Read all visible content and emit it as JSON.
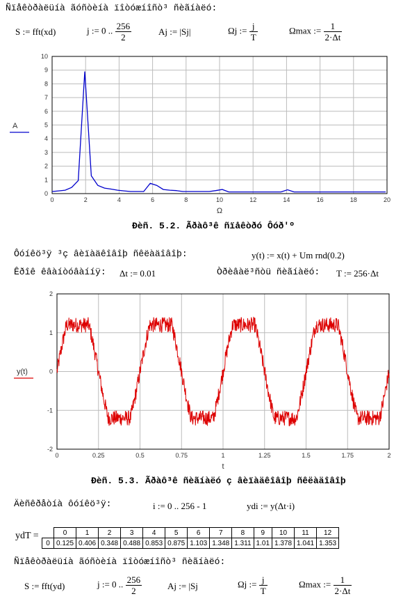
{
  "doc": {
    "heading1": "Ñïåêòðàëüíà ãóñòèíà ïîòóæíîñò³ ñèãíàëó:",
    "formula1": {
      "s_def": "S := fft(xd)",
      "j_range_left": "j := 0 ..",
      "j_num": "256",
      "j_den": "2",
      "a_def": "Aj := |Sj|",
      "omega_def_left": "Ωj :=",
      "omega_num": "j",
      "omega_den": "T",
      "omega_max_left": "Ωmax :=",
      "omega_max_num": "1",
      "omega_max_den": "2·Δt"
    },
    "fig2_caption": "Ðèñ. 5.2. Ãðàô³ê ñïåêòðó Ôóð'º",
    "noise_intro": "Ôóíêö³ÿ ³ç âèïàäêîâîþ ñêëàäîâîþ:",
    "y_def": "y(t) := x(t) + Um rnd(0.2)",
    "step_label": "Êðîê êâàíòóâàííÿ:",
    "step_value": "Δt := 0.01",
    "duration_label": "Òðèâàë³ñòü ñèãíàëó:",
    "duration_value": "T := 256·Δt",
    "fig3_caption": "Ðèñ. 5.3. Ãðàô³ê ñèãíàëó ç âèïàäêîâîþ ñêëàäîâîþ",
    "discrete_label": "Äèñêðåòíà ôóíêö³ÿ:",
    "i_range": "i := 0 .. 256 - 1",
    "yd_def": "ydi := y(Δt·i)",
    "yd_label": "ydT =",
    "heading2": "Ñïåêòðàëüíà ãóñòèíà ïîòóæíîñò³ ñèãíàëó:",
    "formula2": {
      "s_def": "S := fft(yd)",
      "j_range_left": "j := 0 ..",
      "j_num": "256",
      "j_den": "2",
      "a_def": "Aj := |Sj",
      "omega_def_left": "Ωj :=",
      "omega_num": "j",
      "omega_den": "T",
      "omega_max_left": "Ωmax :=",
      "omega_max_num": "1",
      "omega_max_den": "2·Δt"
    }
  },
  "yd_table": {
    "col_indices": [
      "0",
      "1",
      "2",
      "3",
      "4",
      "5",
      "6",
      "7",
      "8",
      "9",
      "10",
      "11",
      "12"
    ],
    "row_index": "0",
    "values": [
      "0.125",
      "0.406",
      "0.348",
      "0.488",
      "0.853",
      "0.875",
      "1.103",
      "1.348",
      "1.311",
      "1.01",
      "1.378",
      "1.041",
      "1.353"
    ]
  },
  "chart_data": [
    {
      "type": "line",
      "xlabel": "Ω",
      "ylabel": "A",
      "xlim": [
        0,
        20
      ],
      "ylim": [
        0,
        10
      ],
      "xticks": [
        "0",
        "2",
        "4",
        "6",
        "8",
        "10",
        "12",
        "14",
        "16",
        "18",
        "20"
      ],
      "yticks": [
        "0",
        "1",
        "2",
        "3",
        "4",
        "5",
        "6",
        "7",
        "8",
        "9",
        "10"
      ],
      "grid": true,
      "color": "#0000cc",
      "series": [
        {
          "x": [
            0,
            0.39,
            0.78,
            1.17,
            1.56,
            1.95,
            2.34,
            2.73,
            3.13,
            3.52,
            3.91,
            4.3,
            4.69,
            5.08,
            5.47,
            5.86,
            6.25,
            6.64,
            7.03,
            7.42,
            7.81,
            8.2,
            8.59,
            8.98,
            9.38,
            9.77,
            10.16,
            10.55,
            10.94,
            11.33,
            11.72,
            12.11,
            12.5,
            12.89,
            13.28,
            13.67,
            14.06,
            14.45,
            14.84,
            15.23,
            15.63,
            16.02,
            16.41,
            16.8,
            17.19,
            17.58,
            17.97,
            18.36,
            18.75,
            19.14,
            19.53,
            19.92
          ],
          "y": [
            0.15,
            0.2,
            0.25,
            0.45,
            0.95,
            8.9,
            1.3,
            0.6,
            0.4,
            0.33,
            0.25,
            0.2,
            0.15,
            0.15,
            0.15,
            0.75,
            0.6,
            0.3,
            0.25,
            0.22,
            0.15,
            0.15,
            0.15,
            0.15,
            0.15,
            0.22,
            0.3,
            0.12,
            0.12,
            0.12,
            0.12,
            0.12,
            0.12,
            0.12,
            0.12,
            0.12,
            0.28,
            0.12,
            0.12,
            0.12,
            0.12,
            0.12,
            0.12,
            0.12,
            0.12,
            0.12,
            0.12,
            0.12,
            0.12,
            0.12,
            0.12,
            0.12
          ]
        }
      ]
    },
    {
      "type": "line",
      "xlabel": "t",
      "ylabel": "y(t)",
      "xlim": [
        0,
        2
      ],
      "ylim": [
        -2,
        2
      ],
      "xticks": [
        "0",
        "0.25",
        "0.5",
        "0.75",
        "1",
        "1.25",
        "1.5",
        "1.75",
        "2"
      ],
      "yticks": [
        "-2",
        "-1",
        "0",
        "1",
        "2"
      ],
      "grid": true,
      "color": "#dd0000",
      "signal": {
        "period": 0.5,
        "amplitude_clip": 1.2,
        "noise_amplitude": 0.2
      }
    }
  ]
}
